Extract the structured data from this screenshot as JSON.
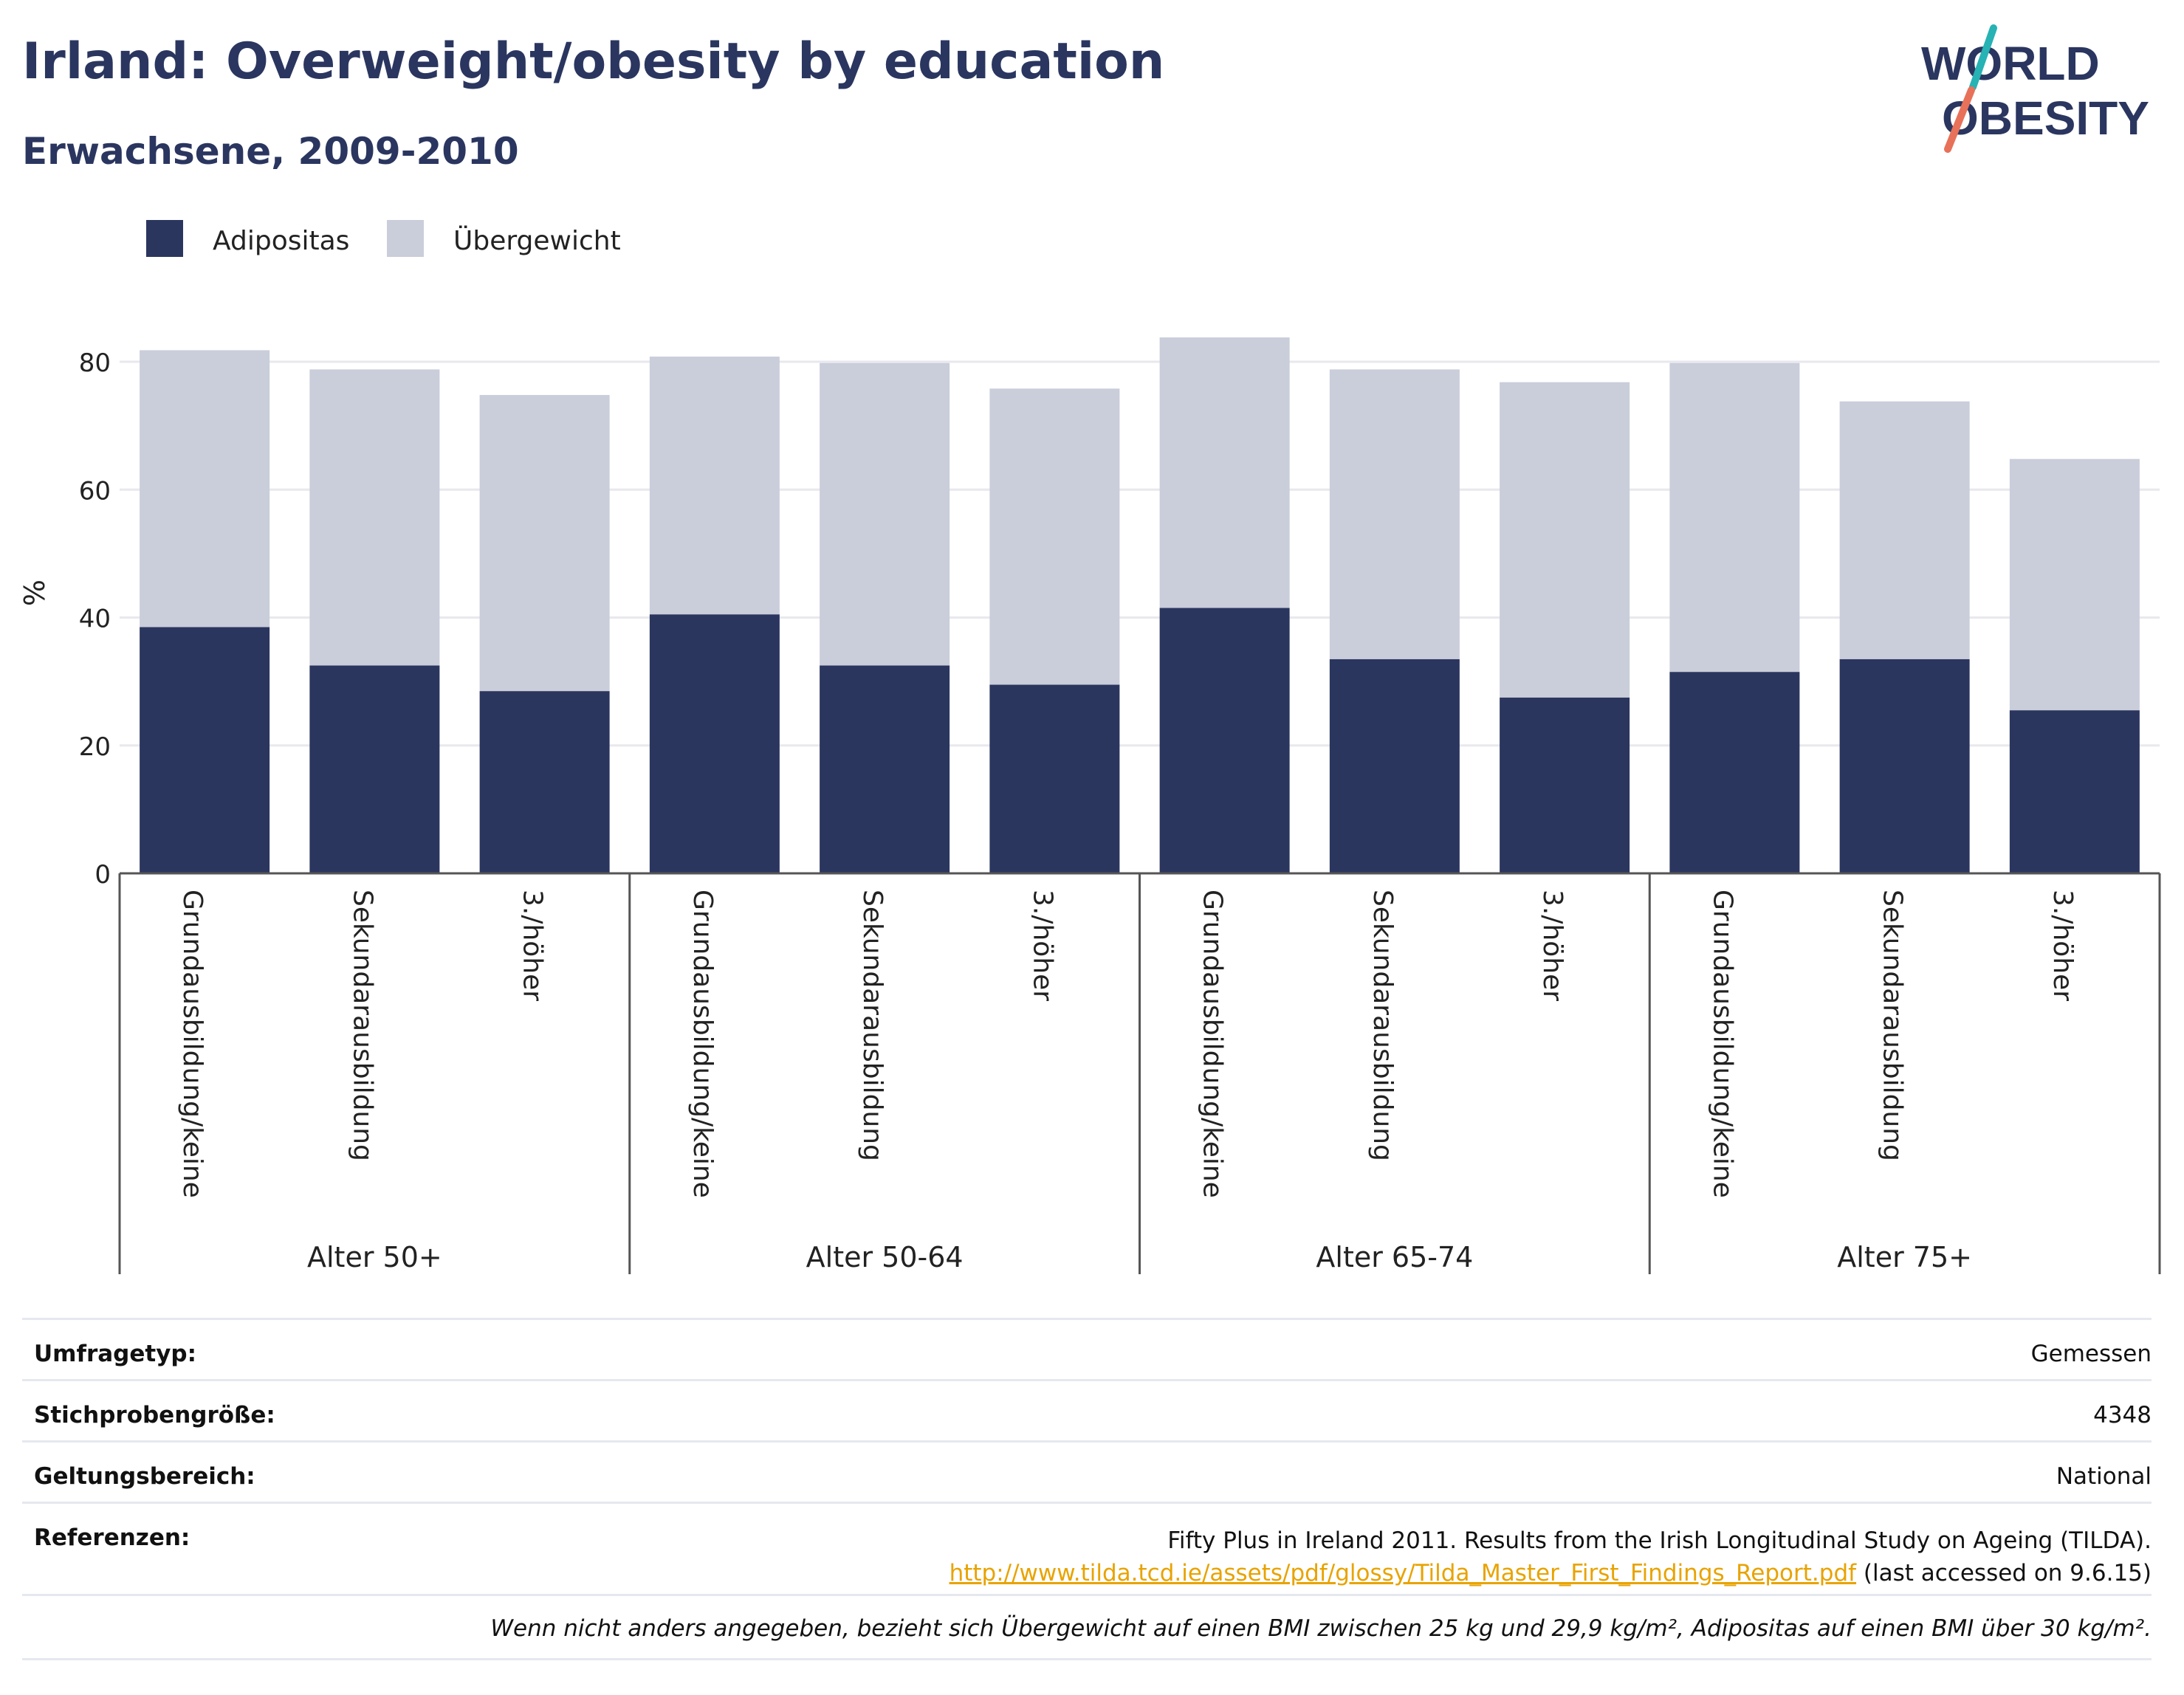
{
  "title": "Irland: Overweight/obesity by education",
  "subtitle": "Erwachsene, 2009-2010",
  "logo": {
    "line1": "WORLD",
    "line2": "OBESITY",
    "text_color": "#2a365f",
    "accent_top": "#27b2b4",
    "accent_bottom": "#e8715a"
  },
  "colors": {
    "adipositas": "#2b365f",
    "uebergewicht": "#cacdda",
    "grid": "#e8e8ee",
    "axis": "#555555"
  },
  "chart_data": {
    "type": "bar",
    "stacked": true,
    "ylabel": "%",
    "ylim": [
      0,
      90
    ],
    "yticks": [
      0,
      20,
      40,
      60,
      80
    ],
    "grid": true,
    "legend": "top-left",
    "categories": [
      "Grundausbildung/keine",
      "Sekundarausbildung",
      "3./höher",
      "Grundausbildung/keine",
      "Sekundarausbildung",
      "3./höher",
      "Grundausbildung/keine",
      "Sekundarausbildung",
      "3./höher",
      "Grundausbildung/keine",
      "Sekundarausbildung",
      "3./höher"
    ],
    "groups": [
      "Alter 50+",
      "Alter 50-64",
      "Alter 65-74",
      "Alter 75+"
    ],
    "series": [
      {
        "name": "Adipositas",
        "values": [
          38.5,
          32.5,
          28.5,
          40.5,
          32.5,
          29.5,
          41.5,
          33.5,
          27.5,
          31.5,
          33.5,
          25.5
        ]
      },
      {
        "name": "Übergewicht",
        "values": [
          43.3,
          46.3,
          46.3,
          40.3,
          47.3,
          46.3,
          42.3,
          45.3,
          49.3,
          48.3,
          40.3,
          39.3
        ]
      }
    ]
  },
  "info": {
    "survey_label": "Umfragetyp:",
    "survey_value": "Gemessen",
    "sample_label": "Stichprobengröße:",
    "sample_value": "4348",
    "scope_label": "Geltungsbereich:",
    "scope_value": "National",
    "ref_label": "Referenzen:",
    "ref_text": "Fifty Plus in Ireland 2011. Results from the Irish Longitudinal Study on Ageing (TILDA).",
    "ref_link": "http://www.tilda.tcd.ie/assets/pdf/glossy/Tilda_Master_First_Findings_Report.pdf",
    "ref_accessed": " (last accessed on 9.6.15)",
    "note": "Wenn nicht anders angegeben, bezieht sich Übergewicht auf einen BMI zwischen 25 kg und 29,9 kg/m², Adipositas auf einen BMI über 30 kg/m²."
  }
}
